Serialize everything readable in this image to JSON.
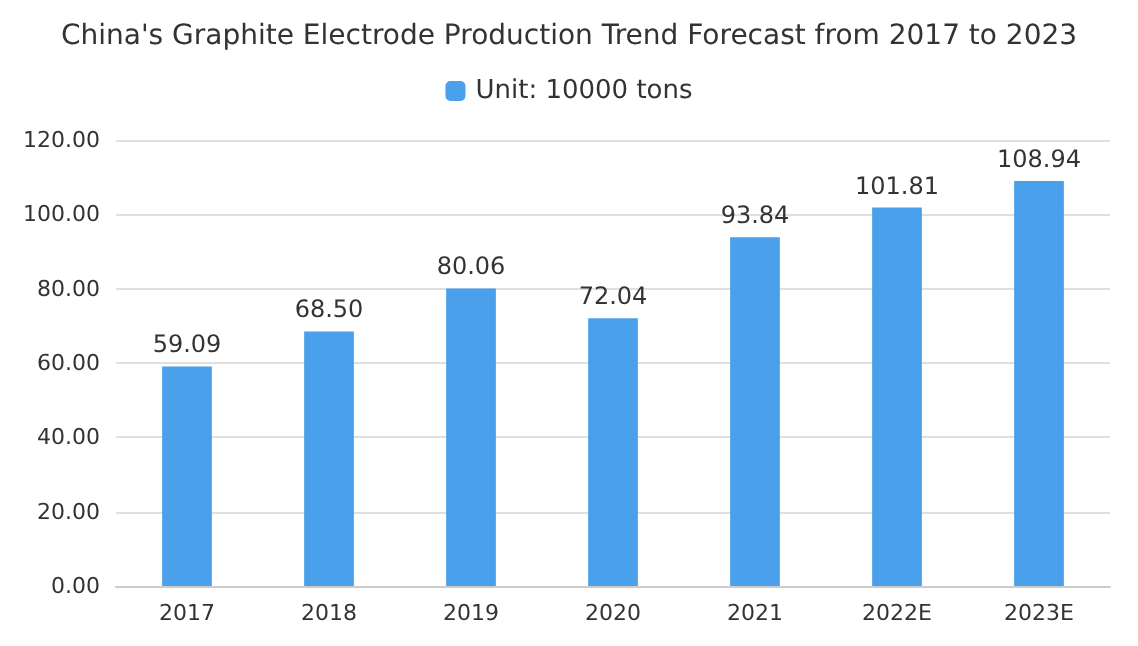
{
  "chart_data": {
    "type": "bar",
    "title": "China's Graphite Electrode Production Trend Forecast from 2017 to 2023",
    "categories": [
      "2017",
      "2018",
      "2019",
      "2020",
      "2021",
      "2022E",
      "2023E"
    ],
    "series": [
      {
        "name": "Unit: 10000 tons",
        "color": "#4aa0ea",
        "values": [
          59.09,
          68.5,
          80.06,
          72.04,
          93.84,
          101.81,
          108.94
        ],
        "value_labels": [
          "59.09",
          "68.50",
          "80.06",
          "72.04",
          "93.84",
          "101.81",
          "108.94"
        ]
      }
    ],
    "ylim": [
      0,
      120
    ],
    "yticks": [
      {
        "value": 0,
        "label": "0.00"
      },
      {
        "value": 20,
        "label": "20.00"
      },
      {
        "value": 40,
        "label": "40.00"
      },
      {
        "value": 60,
        "label": "60.00"
      },
      {
        "value": 80,
        "label": "80.00"
      },
      {
        "value": 100,
        "label": "100.00"
      },
      {
        "value": 120,
        "label": "120.00"
      }
    ],
    "grid": "y",
    "legend": "top"
  }
}
